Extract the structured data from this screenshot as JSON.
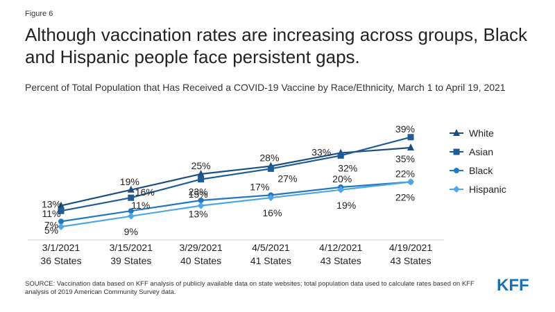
{
  "figure_label": "Figure 6",
  "title": "Although vaccination rates are increasing across groups, Black and Hispanic people face persistent gaps.",
  "subtitle": "Percent of Total Population that Has Received a COVID-19 Vaccine by Race/Ethnicity, March 1 to April 19, 2021",
  "source": "SOURCE: Vaccination data based on KFF analysis of publicly available data on state websites; total population data used to calculate rates based on KFF analysis of 2019 American Community Survey data.",
  "logo_text": "KFF",
  "chart_data": {
    "type": "line",
    "categories": [
      {
        "date": "3/1/2021",
        "states": "36 States"
      },
      {
        "date": "3/15/2021",
        "states": "39 States"
      },
      {
        "date": "3/29/2021",
        "states": "40 States"
      },
      {
        "date": "4/5/2021",
        "states": "41 States"
      },
      {
        "date": "4/12/2021",
        "states": "43 States"
      },
      {
        "date": "4/19/2021",
        "states": "43 States"
      }
    ],
    "ylim": [
      0,
      45
    ],
    "grid": false,
    "legend_position": "right",
    "series": [
      {
        "name": "White",
        "marker": "triangle",
        "color": "#1c4e80",
        "values": [
          13,
          19,
          25,
          28,
          33,
          35
        ],
        "labels": [
          "13%",
          "19%",
          "25%",
          "28%",
          "33%",
          "35%"
        ]
      },
      {
        "name": "Asian",
        "marker": "square",
        "color": "#1d5c96",
        "values": [
          11,
          16,
          23,
          27,
          32,
          39
        ],
        "labels": [
          "11%",
          "16%",
          "23%",
          "27%",
          "32%",
          "39%"
        ]
      },
      {
        "name": "Black",
        "marker": "circle",
        "color": "#1f78c1",
        "values": [
          7,
          11,
          15,
          17,
          20,
          22
        ],
        "labels": [
          "7%",
          "11%",
          "15%",
          "17%",
          "20%",
          "22%"
        ]
      },
      {
        "name": "Hispanic",
        "marker": "diamond",
        "color": "#4da6e6",
        "values": [
          5,
          9,
          13,
          16,
          19,
          22
        ],
        "labels": [
          "5%",
          "9%",
          "13%",
          "16%",
          "19%",
          "22%"
        ]
      }
    ]
  }
}
